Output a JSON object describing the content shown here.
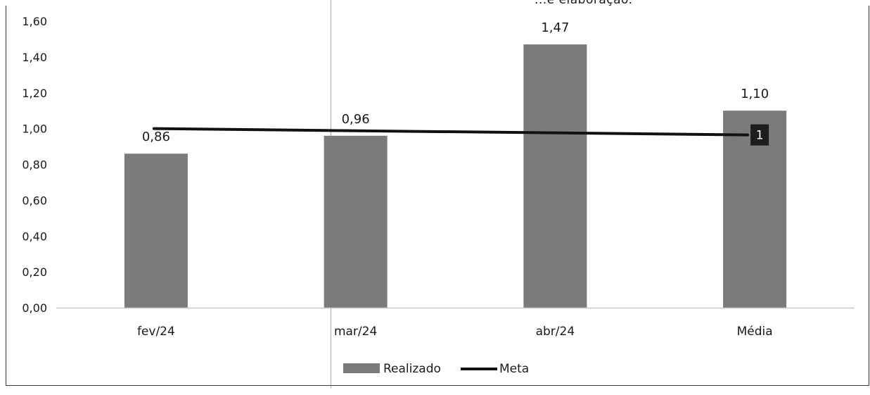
{
  "chart_data": {
    "type": "bar",
    "title_fragment": "...e elaboração.",
    "categories": [
      "fev/24",
      "mar/24",
      "abr/24",
      "Média"
    ],
    "series": [
      {
        "name": "Realizado",
        "type": "bar",
        "values": [
          0.86,
          0.96,
          1.47,
          1.1
        ],
        "labels": [
          "0,86",
          "0,96",
          "1,47",
          "1,10"
        ],
        "color": "#7b7b7b"
      },
      {
        "name": "Meta",
        "type": "line",
        "values": [
          1,
          1,
          1,
          1
        ],
        "end_label": "1",
        "color": "#111111"
      }
    ],
    "ylim": [
      0,
      1.6
    ],
    "yticks": [
      {
        "value": 0.0,
        "label": "0,00"
      },
      {
        "value": 0.2,
        "label": "0,20"
      },
      {
        "value": 0.4,
        "label": "0,40"
      },
      {
        "value": 0.6,
        "label": "0,60"
      },
      {
        "value": 0.8,
        "label": "0,80"
      },
      {
        "value": 1.0,
        "label": "1,00"
      },
      {
        "value": 1.2,
        "label": "1,20"
      },
      {
        "value": 1.4,
        "label": "1,40"
      },
      {
        "value": 1.6,
        "label": "1,60"
      }
    ],
    "grid": false,
    "legend": {
      "position": "bottom",
      "entries": [
        "Realizado",
        "Meta"
      ]
    },
    "xlabel": "",
    "ylabel": ""
  }
}
